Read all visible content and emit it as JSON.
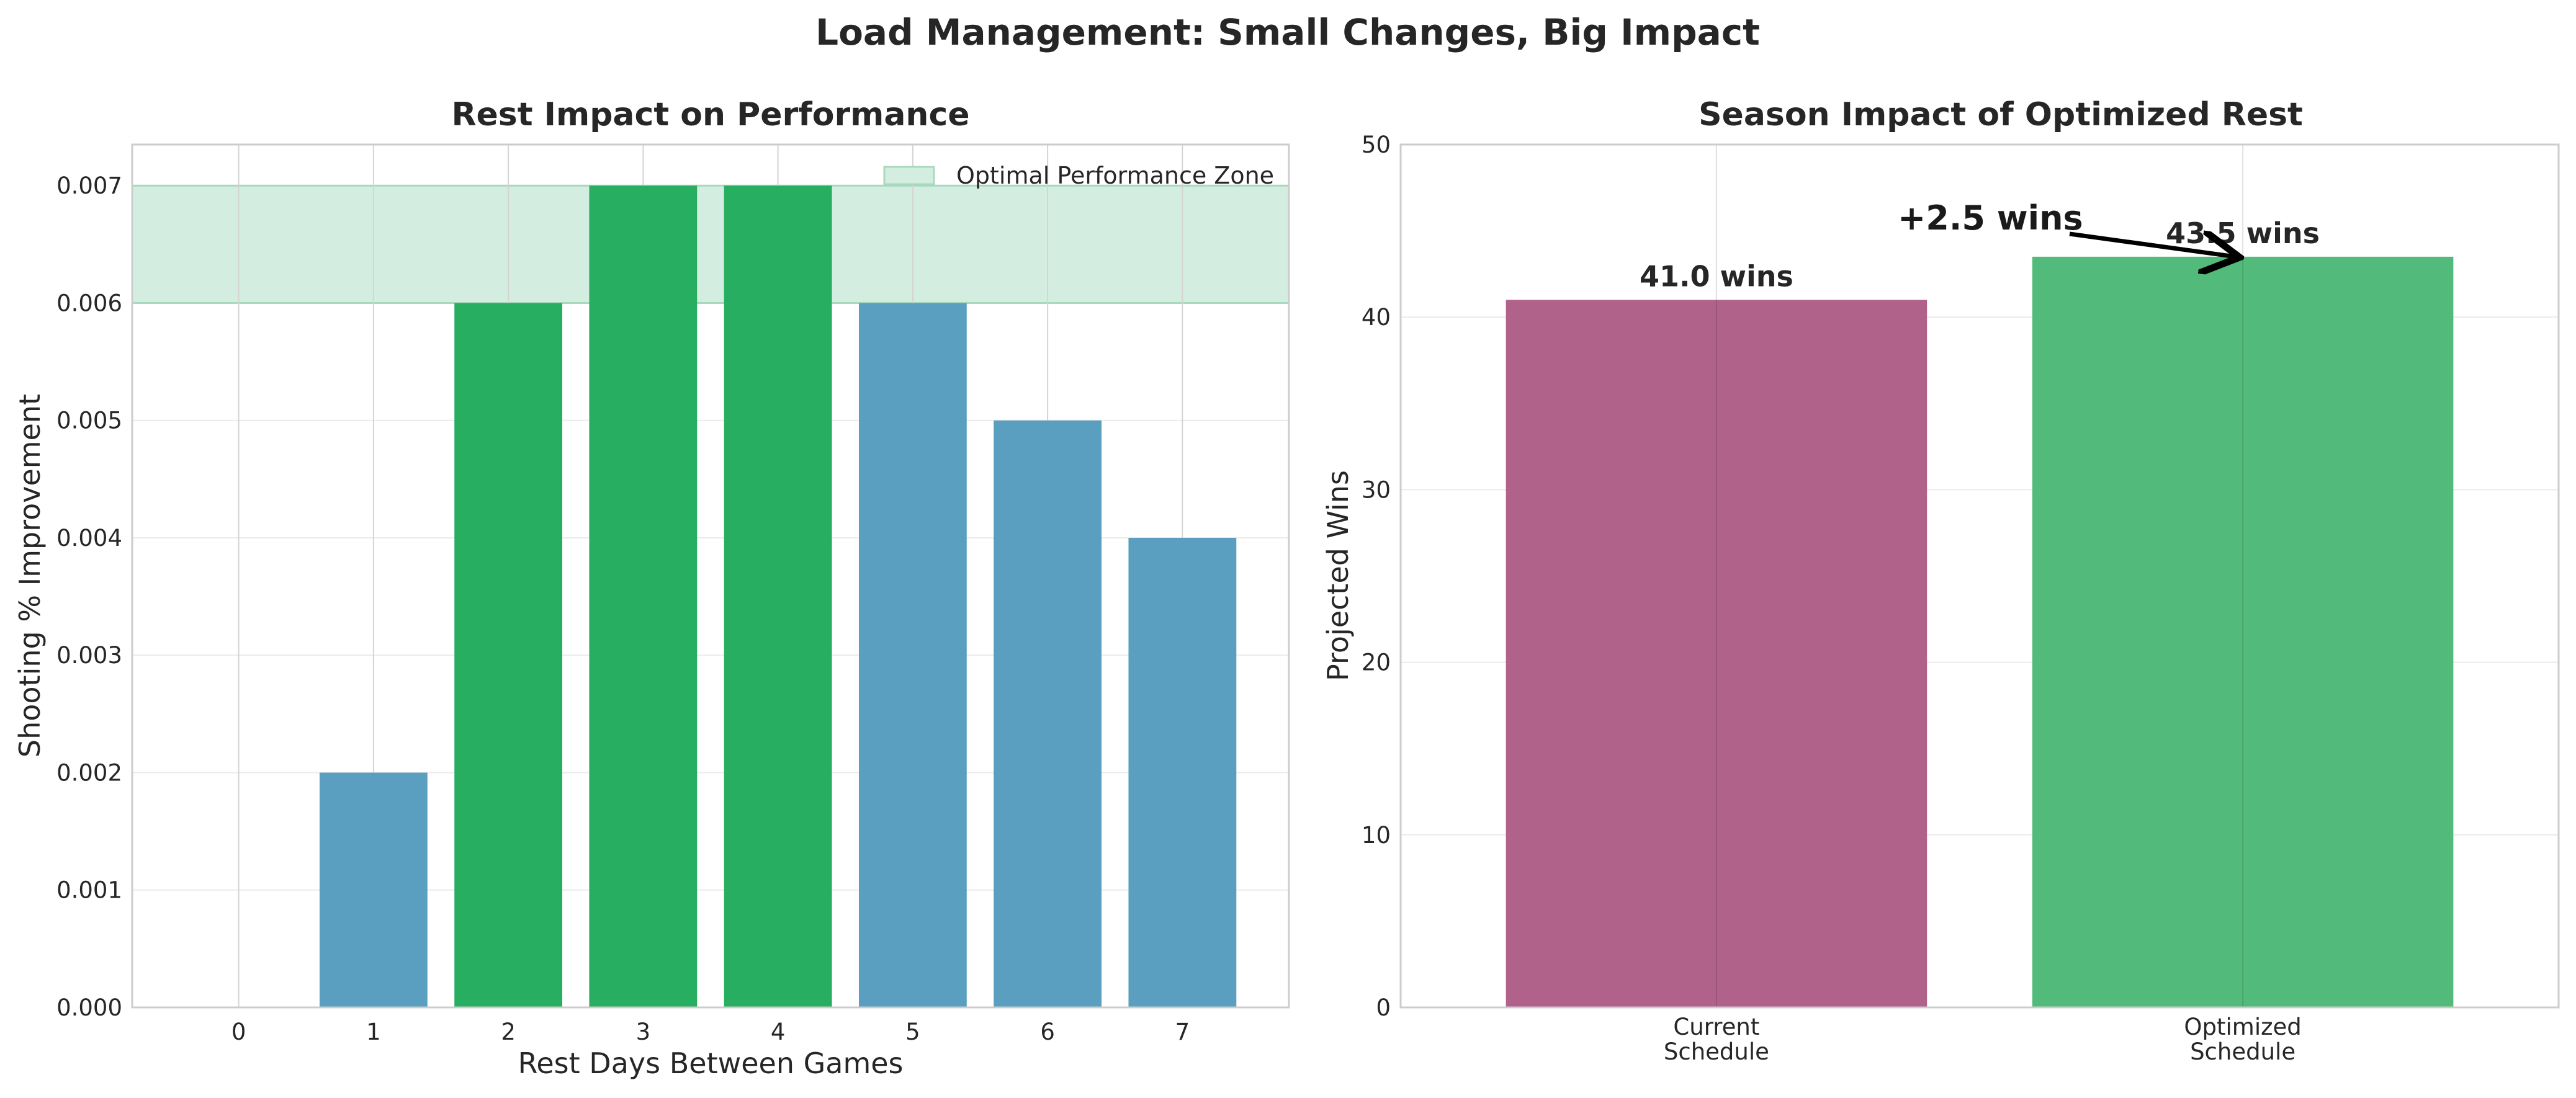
{
  "figure": {
    "title": "Load Management: Small Changes, Big Impact"
  },
  "chart_data": [
    {
      "type": "bar",
      "title": "Rest Impact on Performance",
      "xlabel": "Rest Days Between Games",
      "ylabel": "Shooting % Improvement",
      "categories": [
        "0",
        "1",
        "2",
        "3",
        "4",
        "5",
        "6",
        "7"
      ],
      "values": [
        0.0,
        0.002,
        0.006,
        0.007,
        0.007,
        0.006,
        0.005,
        0.004
      ],
      "highlighted": [
        false,
        false,
        true,
        true,
        true,
        false,
        false,
        false
      ],
      "ylim": [
        0,
        0.00735
      ],
      "yticks": [
        "0.000",
        "0.001",
        "0.002",
        "0.003",
        "0.004",
        "0.005",
        "0.006",
        "0.007"
      ],
      "shaded_band": {
        "label": "Optimal Performance Zone",
        "y0": 0.006,
        "y1": 0.007,
        "color": "#d3eee0"
      },
      "colors": {
        "normal": "#5a9fbf",
        "highlight": "#27ae60"
      },
      "grid": true,
      "legend": "top-right"
    },
    {
      "type": "bar",
      "title": "Season Impact of Optimized Rest",
      "xlabel": "",
      "ylabel": "Projected Wins",
      "categories": [
        "Current\nSchedule",
        "Optimized\nSchedule"
      ],
      "values": [
        41.0,
        43.5
      ],
      "data_labels": [
        "41.0 wins",
        "43.5 wins"
      ],
      "ylim": [
        0,
        50
      ],
      "yticks": [
        "0",
        "10",
        "20",
        "30",
        "40",
        "50"
      ],
      "colors": [
        "#b0628b",
        "#52bb7b"
      ],
      "annotation": {
        "text": "+2.5 wins",
        "points_to_category": 1,
        "points_to_value": 43.5
      },
      "grid": true
    }
  ]
}
